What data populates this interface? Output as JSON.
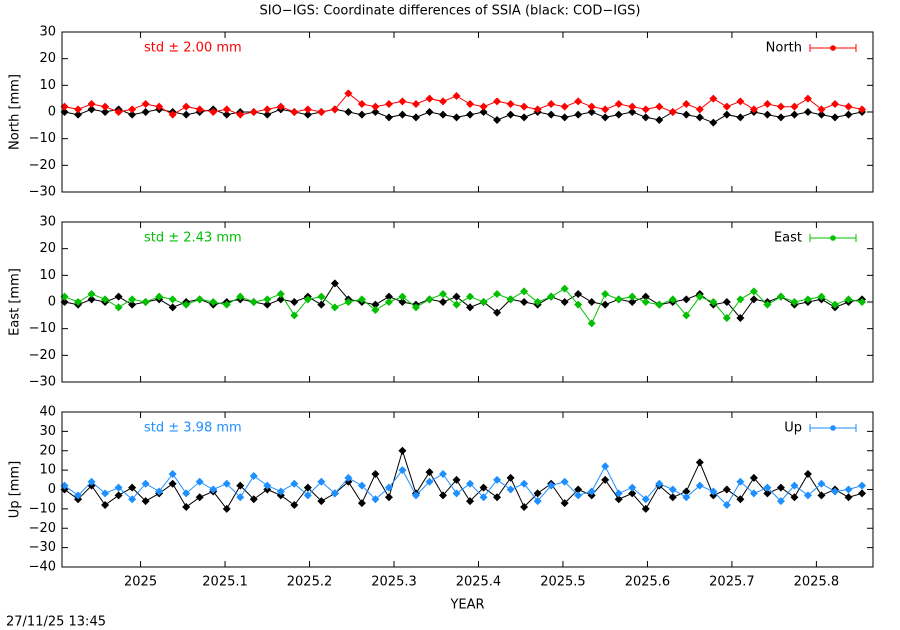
{
  "chart_data": [
    {
      "type": "line",
      "title": "SIO−IGS: Coordinate differences of SSIA (black: COD−IGS)",
      "ylabel": "North [mm]",
      "annotation": "std ± 2.00 mm",
      "legend": "top right",
      "x": [
        2024.91,
        2024.926,
        2024.942,
        2024.958,
        2024.974,
        2024.99,
        2025.006,
        2025.022,
        2025.038,
        2025.054,
        2025.07,
        2025.086,
        2025.102,
        2025.118,
        2025.134,
        2025.15,
        2025.166,
        2025.182,
        2025.198,
        2025.214,
        2025.23,
        2025.246,
        2025.262,
        2025.278,
        2025.294,
        2025.31,
        2025.326,
        2025.342,
        2025.358,
        2025.374,
        2025.39,
        2025.406,
        2025.422,
        2025.438,
        2025.454,
        2025.47,
        2025.486,
        2025.502,
        2025.518,
        2025.534,
        2025.55,
        2025.566,
        2025.582,
        2025.598,
        2025.614,
        2025.63,
        2025.646,
        2025.662,
        2025.678,
        2025.694,
        2025.71,
        2025.726,
        2025.742,
        2025.758,
        2025.774,
        2025.79,
        2025.806,
        2025.822,
        2025.838,
        2025.854
      ],
      "xlim": [
        2024.907,
        2025.867
      ],
      "ylim": [
        -30,
        30
      ],
      "yticks": [
        {
          "value": -30,
          "label": "−30"
        },
        {
          "value": -20,
          "label": "−20"
        },
        {
          "value": -10,
          "label": "−10"
        },
        0,
        10,
        20,
        30
      ],
      "series": [
        {
          "color": "#000000",
          "values": [
            0,
            -1,
            1,
            0,
            1,
            -1,
            0,
            1,
            0,
            -1,
            0,
            1,
            -1,
            0,
            0,
            -1,
            1,
            0,
            -1,
            0,
            1,
            0,
            -1,
            0,
            -2,
            -1,
            -2,
            0,
            -1,
            -2,
            -1,
            0,
            -3,
            -1,
            -2,
            0,
            -1,
            -2,
            -1,
            0,
            -2,
            -1,
            0,
            -2,
            -3,
            0,
            -1,
            -2,
            -4,
            -1,
            -2,
            0,
            -1,
            -2,
            -1,
            0,
            -1,
            -2,
            -1,
            0
          ]
        },
        {
          "name": "North",
          "color": "#ff0000",
          "values": [
            2,
            1,
            3,
            2,
            0,
            1,
            3,
            2,
            -1,
            2,
            1,
            0,
            1,
            -1,
            0,
            1,
            2,
            0,
            1,
            0,
            1,
            7,
            3,
            2,
            3,
            4,
            3,
            5,
            4,
            6,
            3,
            2,
            4,
            3,
            2,
            1,
            3,
            2,
            4,
            2,
            1,
            3,
            2,
            1,
            2,
            0,
            3,
            1,
            5,
            2,
            4,
            1,
            3,
            2,
            2,
            5,
            1,
            3,
            2,
            1
          ]
        }
      ]
    },
    {
      "type": "line",
      "ylabel": "East [mm]",
      "annotation": "std ± 2.43 mm",
      "legend": "top right",
      "x": [
        2024.91,
        2024.926,
        2024.942,
        2024.958,
        2024.974,
        2024.99,
        2025.006,
        2025.022,
        2025.038,
        2025.054,
        2025.07,
        2025.086,
        2025.102,
        2025.118,
        2025.134,
        2025.15,
        2025.166,
        2025.182,
        2025.198,
        2025.214,
        2025.23,
        2025.246,
        2025.262,
        2025.278,
        2025.294,
        2025.31,
        2025.326,
        2025.342,
        2025.358,
        2025.374,
        2025.39,
        2025.406,
        2025.422,
        2025.438,
        2025.454,
        2025.47,
        2025.486,
        2025.502,
        2025.518,
        2025.534,
        2025.55,
        2025.566,
        2025.582,
        2025.598,
        2025.614,
        2025.63,
        2025.646,
        2025.662,
        2025.678,
        2025.694,
        2025.71,
        2025.726,
        2025.742,
        2025.758,
        2025.774,
        2025.79,
        2025.806,
        2025.822,
        2025.838,
        2025.854
      ],
      "xlim": [
        2024.907,
        2025.867
      ],
      "ylim": [
        -30,
        30
      ],
      "yticks": [
        {
          "value": -30,
          "label": "−30"
        },
        {
          "value": -20,
          "label": "−20"
        },
        {
          "value": -10,
          "label": "−10"
        },
        0,
        10,
        20,
        30
      ],
      "series": [
        {
          "color": "#000000",
          "values": [
            0,
            -1,
            1,
            0,
            2,
            -1,
            0,
            1,
            -2,
            0,
            1,
            -1,
            0,
            1,
            0,
            -1,
            1,
            0,
            2,
            -1,
            7,
            1,
            0,
            -1,
            2,
            0,
            -1,
            1,
            0,
            2,
            -2,
            0,
            -4,
            1,
            0,
            -1,
            2,
            0,
            3,
            0,
            -1,
            1,
            0,
            2,
            -1,
            0,
            1,
            3,
            -1,
            0,
            -6,
            1,
            0,
            2,
            -1,
            0,
            1,
            -2,
            0,
            1
          ]
        },
        {
          "name": "East",
          "color": "#00c000",
          "values": [
            2,
            0,
            3,
            1,
            -2,
            1,
            0,
            2,
            1,
            -1,
            1,
            0,
            -1,
            2,
            0,
            1,
            3,
            -5,
            1,
            2,
            -2,
            0,
            1,
            -3,
            0,
            2,
            -2,
            1,
            3,
            -1,
            2,
            0,
            3,
            1,
            4,
            0,
            2,
            5,
            -1,
            -8,
            3,
            1,
            2,
            0,
            -1,
            1,
            -5,
            2,
            0,
            -6,
            1,
            4,
            -1,
            2,
            0,
            1,
            2,
            -1,
            1,
            0
          ]
        }
      ]
    },
    {
      "type": "line",
      "ylabel": "Up [mm]",
      "xlabel": "YEAR",
      "annotation": "std ± 3.98 mm",
      "legend": "top right",
      "x": [
        2024.91,
        2024.926,
        2024.942,
        2024.958,
        2024.974,
        2024.99,
        2025.006,
        2025.022,
        2025.038,
        2025.054,
        2025.07,
        2025.086,
        2025.102,
        2025.118,
        2025.134,
        2025.15,
        2025.166,
        2025.182,
        2025.198,
        2025.214,
        2025.23,
        2025.246,
        2025.262,
        2025.278,
        2025.294,
        2025.31,
        2025.326,
        2025.342,
        2025.358,
        2025.374,
        2025.39,
        2025.406,
        2025.422,
        2025.438,
        2025.454,
        2025.47,
        2025.486,
        2025.502,
        2025.518,
        2025.534,
        2025.55,
        2025.566,
        2025.582,
        2025.598,
        2025.614,
        2025.63,
        2025.646,
        2025.662,
        2025.678,
        2025.694,
        2025.71,
        2025.726,
        2025.742,
        2025.758,
        2025.774,
        2025.79,
        2025.806,
        2025.822,
        2025.838,
        2025.854
      ],
      "xlim": [
        2024.907,
        2025.867
      ],
      "ylim": [
        -40,
        40
      ],
      "xticks": [
        2025,
        2025.1,
        2025.2,
        2025.3,
        2025.4,
        2025.5,
        2025.6,
        2025.7,
        2025.8
      ],
      "yticks": [
        {
          "value": -40,
          "label": "−40"
        },
        {
          "value": -30,
          "label": "−30"
        },
        {
          "value": -20,
          "label": "−20"
        },
        {
          "value": -10,
          "label": "−10"
        },
        0,
        10,
        20,
        30,
        40
      ],
      "series": [
        {
          "color": "#000000",
          "values": [
            0,
            -5,
            2,
            -8,
            -3,
            1,
            -6,
            -2,
            3,
            -9,
            -4,
            -1,
            -10,
            2,
            -5,
            0,
            -3,
            -8,
            1,
            -6,
            -2,
            4,
            -7,
            8,
            -4,
            20,
            -2,
            9,
            -3,
            5,
            -6,
            1,
            -4,
            6,
            -9,
            -2,
            3,
            -7,
            0,
            -3,
            5,
            -5,
            -2,
            -10,
            2,
            -4,
            -1,
            14,
            -3,
            0,
            -5,
            6,
            -2,
            1,
            -4,
            8,
            -3,
            0,
            -4,
            -2
          ]
        },
        {
          "name": "Up",
          "color": "#1e8fff",
          "values": [
            2,
            -3,
            4,
            -2,
            1,
            -5,
            3,
            -1,
            8,
            -2,
            4,
            0,
            3,
            -4,
            7,
            2,
            -1,
            3,
            -3,
            4,
            -2,
            6,
            2,
            -5,
            1,
            10,
            -3,
            4,
            8,
            -2,
            3,
            -4,
            5,
            0,
            3,
            -6,
            2,
            4,
            -3,
            -1,
            12,
            -2,
            1,
            -5,
            3,
            0,
            -4,
            2,
            -1,
            -8,
            4,
            -2,
            1,
            -6,
            2,
            -3,
            3,
            -1,
            0,
            2
          ]
        }
      ]
    }
  ],
  "timestamp": "27/11/25 13:45"
}
